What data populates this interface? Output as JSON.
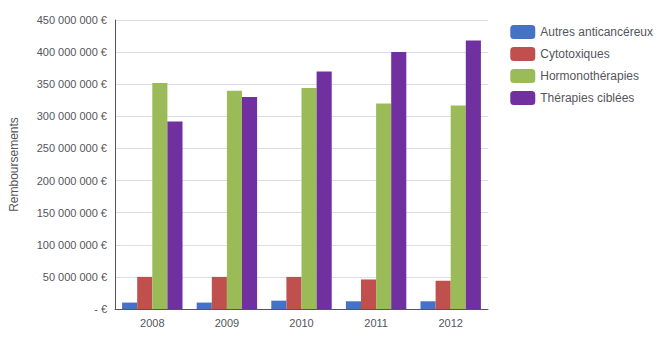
{
  "chart_data": {
    "type": "bar",
    "ylabel": "Remboursements",
    "categories": [
      "2008",
      "2009",
      "2010",
      "2011",
      "2012"
    ],
    "series": [
      {
        "name": "Autres anticancéreux",
        "color": "#4472C4",
        "values": [
          10000000,
          10000000,
          13000000,
          12000000,
          12000000
        ]
      },
      {
        "name": "Cytotoxiques",
        "color": "#C0504D",
        "values": [
          50000000,
          50000000,
          50000000,
          46000000,
          44000000
        ]
      },
      {
        "name": "Hormonothérapies",
        "color": "#9BBB59",
        "values": [
          352000000,
          340000000,
          344000000,
          320000000,
          317000000
        ]
      },
      {
        "name": "Thérapies ciblées",
        "color": "#7030A0",
        "values": [
          292000000,
          330000000,
          370000000,
          400000000,
          418000000
        ]
      }
    ],
    "ylim": [
      0,
      450000000
    ],
    "yticks": [
      {
        "value": 0,
        "label": "- €"
      },
      {
        "value": 50000000,
        "label": "50 000 000 €"
      },
      {
        "value": 100000000,
        "label": "100 000 000 €"
      },
      {
        "value": 150000000,
        "label": "150 000 000 €"
      },
      {
        "value": 200000000,
        "label": "200 000 000 €"
      },
      {
        "value": 250000000,
        "label": "250 000 000 €"
      },
      {
        "value": 300000000,
        "label": "300 000 000 €"
      },
      {
        "value": 350000000,
        "label": "350 000 000 €"
      },
      {
        "value": 400000000,
        "label": "400 000 000 €"
      },
      {
        "value": 450000000,
        "label": "450 000 000 €"
      }
    ],
    "grid": true,
    "legend": "right"
  }
}
